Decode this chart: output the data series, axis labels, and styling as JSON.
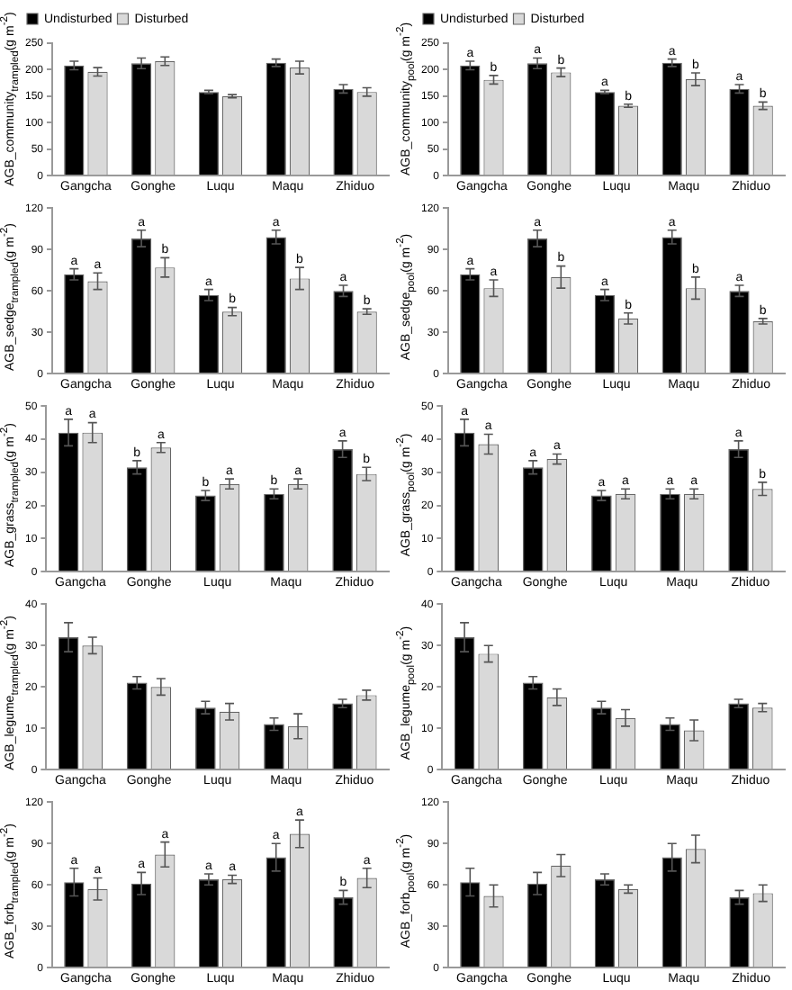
{
  "chart_data": [
    {
      "type": "bar",
      "categories": [
        "Gangcha",
        "Gonghe",
        "Luqu",
        "Maqu",
        "Zhiduo"
      ],
      "ylabel": "AGB_community$_{trampled}$(g m$^{-2}$)",
      "ylim": [
        0,
        250
      ],
      "yticks": [
        0,
        50,
        100,
        150,
        200,
        250
      ],
      "legend": "top left",
      "series": [
        {
          "name": "Undisturbed",
          "color": "#000000",
          "values": [
            208,
            212,
            158,
            213,
            164
          ],
          "errors": [
            8,
            10,
            3,
            7,
            8
          ]
        },
        {
          "name": "Disturbed",
          "color": "#d9d9d9",
          "values": [
            196,
            216,
            150,
            204,
            158
          ],
          "errors": [
            8,
            8,
            3,
            12,
            8
          ]
        }
      ]
    },
    {
      "type": "bar",
      "categories": [
        "Gangcha",
        "Gonghe",
        "Luqu",
        "Maqu",
        "Zhiduo"
      ],
      "ylabel": "AGB_community$_{pool}$(g m$^{-2}$)",
      "ylim": [
        0,
        250
      ],
      "yticks": [
        0,
        50,
        100,
        150,
        200,
        250
      ],
      "legend": "top left",
      "series": [
        {
          "name": "Undisturbed",
          "color": "#000000",
          "values": [
            208,
            212,
            158,
            213,
            164
          ],
          "errors": [
            8,
            10,
            3,
            7,
            8
          ],
          "value_labels": [
            "a",
            "a",
            "a",
            "a",
            "a"
          ]
        },
        {
          "name": "Disturbed",
          "color": "#d9d9d9",
          "values": [
            181,
            195,
            132,
            182,
            132
          ],
          "errors": [
            8,
            8,
            3,
            12,
            7
          ],
          "value_labels": [
            "b",
            "b",
            "b",
            "b",
            "b"
          ]
        }
      ]
    },
    {
      "type": "bar",
      "categories": [
        "Gangcha",
        "Gonghe",
        "Luqu",
        "Maqu",
        "Zhiduo"
      ],
      "ylabel": "AGB_sedge$_{trampled}$(g m$^{-2}$)",
      "ylim": [
        0,
        120
      ],
      "yticks": [
        0,
        30,
        60,
        90,
        120
      ],
      "series": [
        {
          "color": "#000000",
          "values": [
            72,
            98,
            57,
            99,
            60
          ],
          "errors": [
            4,
            6,
            4,
            5,
            4
          ],
          "value_labels": [
            "a",
            "a",
            "a",
            "a",
            "a"
          ]
        },
        {
          "color": "#d9d9d9",
          "values": [
            67,
            77,
            45,
            69,
            45
          ],
          "errors": [
            6,
            7,
            3,
            8,
            2
          ],
          "value_labels": [
            "a",
            "b",
            "b",
            "b",
            "b"
          ]
        }
      ]
    },
    {
      "type": "bar",
      "categories": [
        "Gangcha",
        "Gonghe",
        "Luqu",
        "Maqu",
        "Zhiduo"
      ],
      "ylabel": "AGB_sedge$_{pool}$(g m$^{-2}$)",
      "ylim": [
        0,
        120
      ],
      "yticks": [
        0,
        30,
        60,
        90,
        120
      ],
      "series": [
        {
          "color": "#000000",
          "values": [
            72,
            98,
            57,
            99,
            60
          ],
          "errors": [
            4,
            6,
            4,
            5,
            4
          ],
          "value_labels": [
            "a",
            "a",
            "a",
            "a",
            "a"
          ]
        },
        {
          "color": "#d9d9d9",
          "values": [
            62,
            70,
            40,
            62,
            38
          ],
          "errors": [
            6,
            8,
            4,
            8,
            2
          ],
          "value_labels": [
            "a",
            "b",
            "b",
            "b",
            "b"
          ]
        }
      ]
    },
    {
      "type": "bar",
      "categories": [
        "Gangcha",
        "Gonghe",
        "Luqu",
        "Maqu",
        "Zhiduo"
      ],
      "ylabel": "AGB_grass$_{trampled}$(g m$^{-2}$)",
      "ylim": [
        0,
        50
      ],
      "yticks": [
        0,
        10,
        20,
        30,
        40,
        50
      ],
      "series": [
        {
          "color": "#000000",
          "values": [
            42,
            31.5,
            23,
            23.5,
            37
          ],
          "errors": [
            4,
            2,
            1.5,
            1.5,
            2.5
          ],
          "value_labels": [
            "a",
            "b",
            "b",
            "b",
            "a"
          ]
        },
        {
          "color": "#d9d9d9",
          "values": [
            42,
            37.5,
            26.5,
            26.5,
            29.5
          ],
          "errors": [
            3,
            1.5,
            1.5,
            1.5,
            2
          ],
          "value_labels": [
            "a",
            "a",
            "a",
            "a",
            "b"
          ]
        }
      ]
    },
    {
      "type": "bar",
      "categories": [
        "Gangcha",
        "Gonghe",
        "Luqu",
        "Maqu",
        "Zhiduo"
      ],
      "ylabel": "AGB_grass$_{pool}$(g m$^{-2}$)",
      "ylim": [
        0,
        50
      ],
      "yticks": [
        0,
        10,
        20,
        30,
        40,
        50
      ],
      "series": [
        {
          "color": "#000000",
          "values": [
            42,
            31.5,
            23,
            23.5,
            37
          ],
          "errors": [
            4,
            2,
            1.5,
            1.5,
            2.5
          ],
          "value_labels": [
            "a",
            "a",
            "a",
            "a",
            "a"
          ]
        },
        {
          "color": "#d9d9d9",
          "values": [
            38.5,
            34,
            23.5,
            23.5,
            25
          ],
          "errors": [
            3,
            1.5,
            1.5,
            1.5,
            2
          ],
          "value_labels": [
            "a",
            "a",
            "a",
            "a",
            "b"
          ]
        }
      ]
    },
    {
      "type": "bar",
      "categories": [
        "Gangcha",
        "Gonghe",
        "Luqu",
        "Maqu",
        "Zhiduo"
      ],
      "ylabel": "AGB_legume$_{trampled}$(g m$^{-2}$)",
      "ylim": [
        0,
        40
      ],
      "yticks": [
        0,
        10,
        20,
        30,
        40
      ],
      "series": [
        {
          "color": "#000000",
          "values": [
            32,
            21,
            15,
            11,
            16
          ],
          "errors": [
            3.5,
            1.5,
            1.5,
            1.5,
            1
          ]
        },
        {
          "color": "#d9d9d9",
          "values": [
            30,
            20,
            14,
            10.5,
            18
          ],
          "errors": [
            2,
            2,
            2,
            3,
            1.2
          ]
        }
      ]
    },
    {
      "type": "bar",
      "categories": [
        "Gangcha",
        "Gonghe",
        "Luqu",
        "Maqu",
        "Zhiduo"
      ],
      "ylabel": "AGB_legume$_{pool}$(g m$^{-2}$)",
      "ylim": [
        0,
        40
      ],
      "yticks": [
        0,
        10,
        20,
        30,
        40
      ],
      "series": [
        {
          "color": "#000000",
          "values": [
            32,
            21,
            15,
            11,
            16
          ],
          "errors": [
            3.5,
            1.5,
            1.5,
            1.5,
            1
          ]
        },
        {
          "color": "#d9d9d9",
          "values": [
            28,
            17.5,
            12.5,
            9.5,
            15
          ],
          "errors": [
            2,
            2,
            2,
            2.5,
            1
          ]
        }
      ]
    },
    {
      "type": "bar",
      "categories": [
        "Gangcha",
        "Gonghe",
        "Luqu",
        "Maqu",
        "Zhiduo"
      ],
      "ylabel": "AGB_forb$_{trampled}$(g m$^{-2}$)",
      "ylim": [
        0,
        120
      ],
      "yticks": [
        0,
        30,
        60,
        90,
        120
      ],
      "series": [
        {
          "color": "#000000",
          "values": [
            62,
            61,
            64,
            80,
            51
          ],
          "errors": [
            10,
            8,
            4,
            10,
            5
          ],
          "value_labels": [
            "a",
            "a",
            "a",
            "a",
            "b"
          ]
        },
        {
          "color": "#d9d9d9",
          "values": [
            57,
            82,
            64,
            97,
            65
          ],
          "errors": [
            8,
            9,
            3,
            10,
            7
          ],
          "value_labels": [
            "a",
            "a",
            "a",
            "a",
            "a"
          ]
        }
      ]
    },
    {
      "type": "bar",
      "categories": [
        "Gangcha",
        "Gonghe",
        "Luqu",
        "Maqu",
        "Zhiduo"
      ],
      "ylabel": "AGB_forb$_{pool}$(g m$^{-2}$)",
      "ylim": [
        0,
        120
      ],
      "yticks": [
        0,
        30,
        60,
        90,
        120
      ],
      "series": [
        {
          "color": "#000000",
          "values": [
            62,
            61,
            64,
            80,
            51
          ],
          "errors": [
            10,
            8,
            4,
            10,
            5
          ]
        },
        {
          "color": "#d9d9d9",
          "values": [
            52,
            74,
            57,
            86,
            54
          ],
          "errors": [
            8,
            8,
            3,
            10,
            6
          ]
        }
      ]
    }
  ]
}
